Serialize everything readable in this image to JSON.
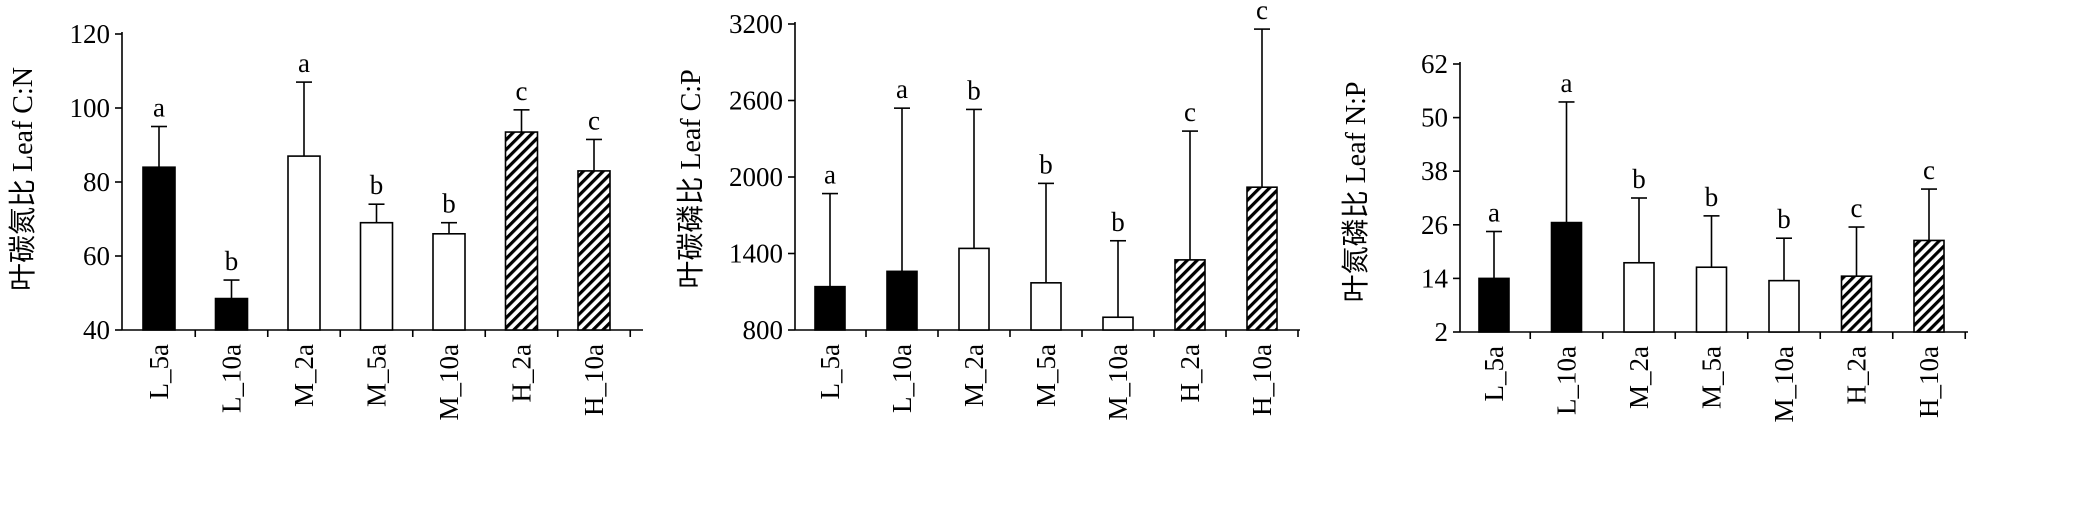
{
  "colors": {
    "bar_L": "#000000",
    "bar_M": "#ffffff",
    "bar_H": "hatched",
    "outline": "#000000"
  },
  "chart_data": [
    {
      "type": "bar",
      "ylabel": "叶碳氮比 Leaf C:N",
      "ylim": [
        40,
        120
      ],
      "yticks": [
        "40",
        "60",
        "80",
        "100",
        "120"
      ],
      "categories": [
        "L_5a",
        "L_10a",
        "M_2a",
        "M_5a",
        "M_10a",
        "H_2a",
        "H_10a"
      ],
      "values": [
        84,
        48.5,
        87,
        69,
        66,
        93.5,
        83
      ],
      "errors": [
        11,
        5,
        20,
        5,
        3,
        6,
        8.5
      ],
      "letters": [
        "a",
        "b",
        "a",
        "b",
        "b",
        "c",
        "c"
      ],
      "fills": [
        "black",
        "black",
        "white",
        "white",
        "white",
        "hatch",
        "hatch"
      ]
    },
    {
      "type": "bar",
      "ylabel": "叶碳磷比 Leaf C:P",
      "ylim": [
        800,
        3200
      ],
      "yticks": [
        "800",
        "1400",
        "2000",
        "2600",
        "3200"
      ],
      "categories": [
        "L_5a",
        "L_10a",
        "M_2a",
        "M_5a",
        "M_10a",
        "H_2a",
        "H_10a"
      ],
      "values": [
        1140,
        1260,
        1440,
        1170,
        900,
        1350,
        1920
      ],
      "errors": [
        730,
        1280,
        1090,
        780,
        600,
        1010,
        1240
      ],
      "letters": [
        "a",
        "a",
        "b",
        "b",
        "b",
        "c",
        "c"
      ],
      "fills": [
        "black",
        "black",
        "white",
        "white",
        "white",
        "hatch",
        "hatch"
      ]
    },
    {
      "type": "bar",
      "ylabel": "叶氮磷比 Leaf N:P",
      "ylim": [
        2,
        62
      ],
      "yticks": [
        "2",
        "14",
        "26",
        "38",
        "50",
        "62"
      ],
      "categories": [
        "L_5a",
        "L_10a",
        "M_2a",
        "M_5a",
        "M_10a",
        "H_2a",
        "H_10a"
      ],
      "values": [
        14,
        26.5,
        17.5,
        16.5,
        13.5,
        14.5,
        22.5
      ],
      "errors": [
        10.5,
        27,
        14.5,
        11.5,
        9.5,
        11,
        11.5
      ],
      "letters": [
        "a",
        "a",
        "b",
        "b",
        "b",
        "c",
        "c"
      ],
      "fills": [
        "black",
        "black",
        "white",
        "white",
        "white",
        "hatch",
        "hatch"
      ]
    }
  ]
}
